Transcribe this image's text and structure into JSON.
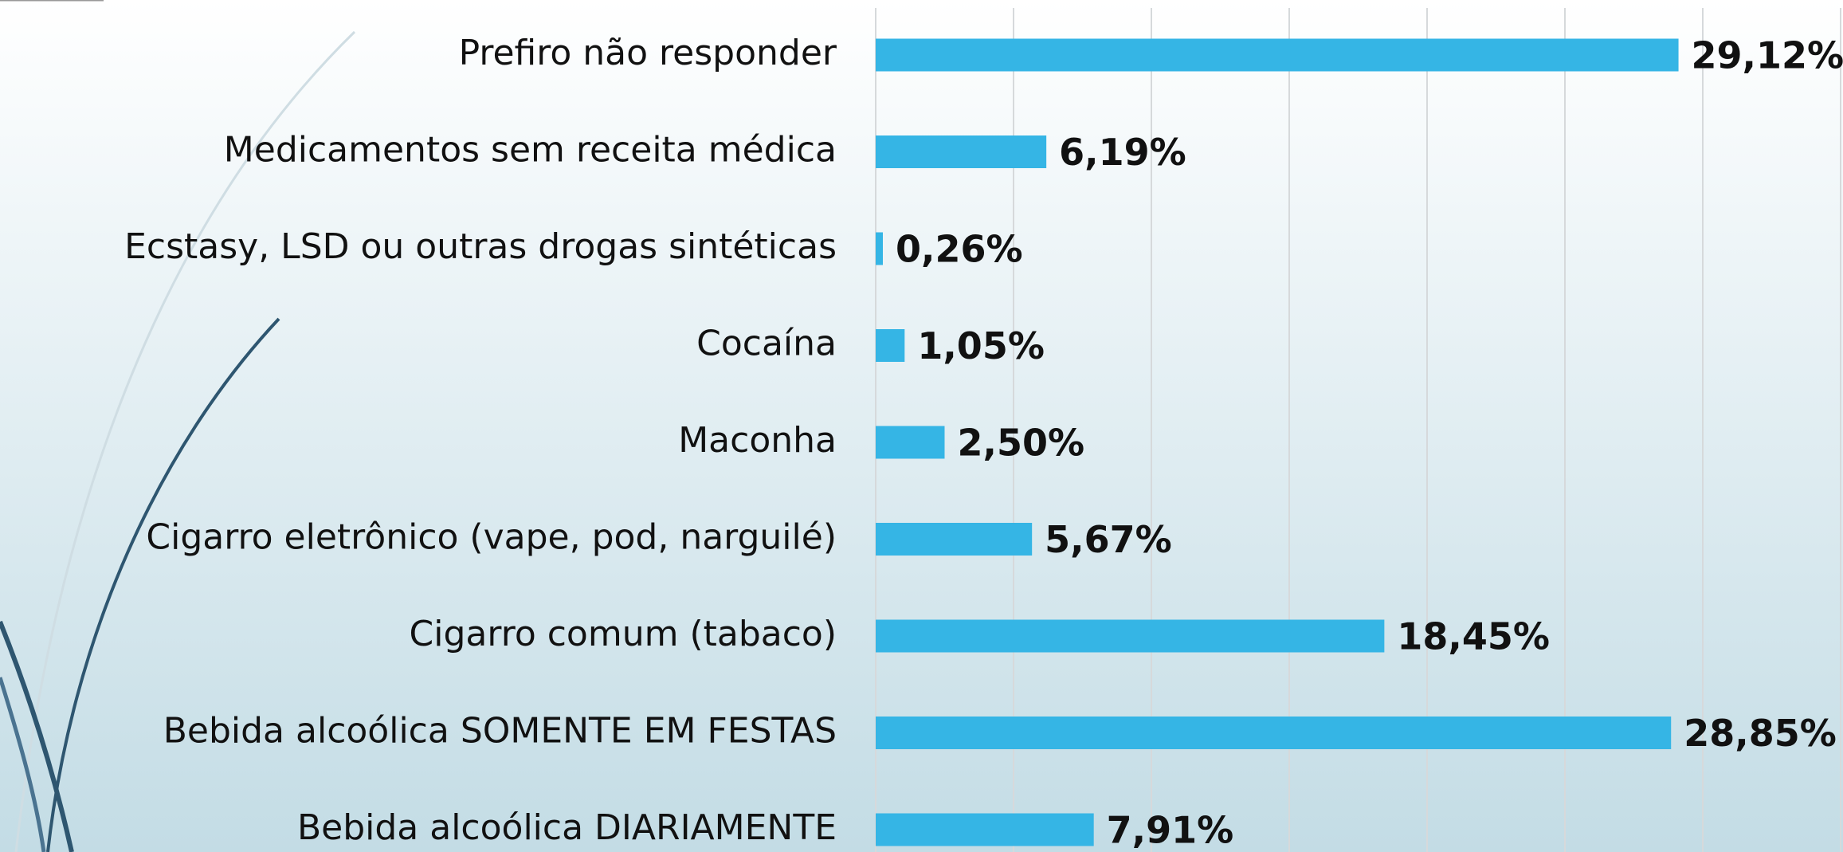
{
  "chart_data": {
    "type": "bar",
    "orientation": "horizontal",
    "categories": [
      "Prefiro não responder",
      "Medicamentos sem receita médica",
      "Ecstasy, LSD ou outras drogas sintéticas",
      "Cocaína",
      "Maconha",
      "Cigarro eletrônico (vape, pod, narguilé)",
      "Cigarro comum (tabaco)",
      "Bebida alcoólica SOMENTE EM FESTAS",
      "Bebida alcoólica DIARIAMENTE"
    ],
    "values": [
      29.12,
      6.19,
      0.26,
      1.05,
      2.5,
      5.67,
      18.45,
      28.85,
      7.91
    ],
    "value_labels": [
      "29,12%",
      "6,19%",
      "0,26%",
      "1,05%",
      "2,50%",
      "5,67%",
      "18,45%",
      "28,85%",
      "7,91%"
    ],
    "color": "#35b5e5",
    "xlim": [
      0,
      35
    ],
    "xticks": [
      0,
      5,
      10,
      15,
      20,
      25,
      30,
      35
    ],
    "grid": true
  }
}
